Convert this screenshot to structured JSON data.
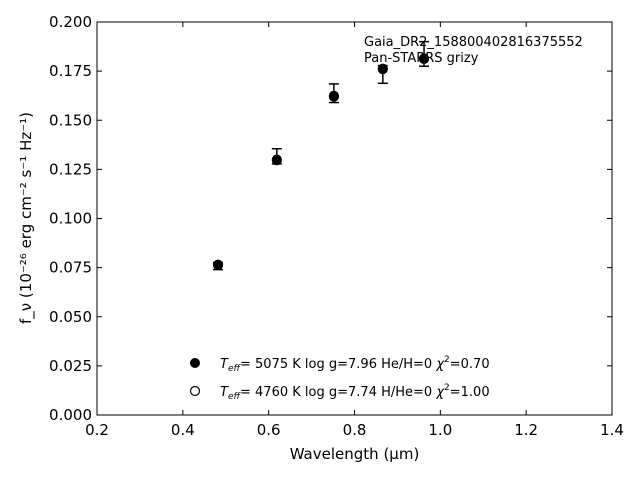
{
  "chart_data": {
    "type": "scatter",
    "xlabel": "Wavelength (μm)",
    "ylabel": "f_ν (10⁻²⁶ erg cm⁻² s⁻¹ Hz⁻¹)",
    "xlim": [
      0.2,
      1.4
    ],
    "ylim": [
      0.0,
      0.2
    ],
    "xticks": [
      0.2,
      0.4,
      0.6,
      0.8,
      1.0,
      1.2,
      1.4
    ],
    "yticks": [
      0.0,
      0.025,
      0.05,
      0.075,
      0.1,
      0.125,
      0.15,
      0.175,
      0.2
    ],
    "xtick_labels": [
      "0.2",
      "0.4",
      "0.6",
      "0.8",
      "1.0",
      "1.2",
      "1.4"
    ],
    "ytick_labels": [
      "0.000",
      "0.025",
      "0.050",
      "0.075",
      "0.100",
      "0.125",
      "0.150",
      "0.175",
      "0.200"
    ],
    "grid": false,
    "annotation": {
      "lines": [
        "Gaia_DR2_158800402816375552",
        "Pan-STARRS grizy"
      ],
      "placement": "top-right"
    },
    "series": [
      {
        "marker": "filled-circle",
        "x": [
          0.482,
          0.619,
          0.752,
          0.866,
          0.962
        ],
        "y": [
          0.0762,
          0.13,
          0.1625,
          0.1763,
          0.1815
        ],
        "yerr_low": [
          0.0022,
          0.0022,
          0.0035,
          0.0075,
          0.004
        ],
        "yerr_high": [
          0.0014,
          0.0055,
          0.006,
          0.0015,
          0.0085
        ]
      },
      {
        "marker": "open-circle",
        "x": [
          0.482,
          0.619,
          0.752,
          0.866,
          0.962
        ],
        "y": [
          0.0765,
          0.1297,
          0.162,
          0.176,
          0.1812
        ]
      }
    ],
    "legend": {
      "placement": "lower-center",
      "entries": [
        {
          "marker": "filled-circle",
          "teff": "5075 K",
          "params": "log g=7.96  He/H=0",
          "chi2": "=0.70"
        },
        {
          "marker": "open-circle",
          "teff": "4760 K",
          "params": "log g=7.74  H/He=0",
          "chi2": "=1.00"
        }
      ]
    }
  }
}
